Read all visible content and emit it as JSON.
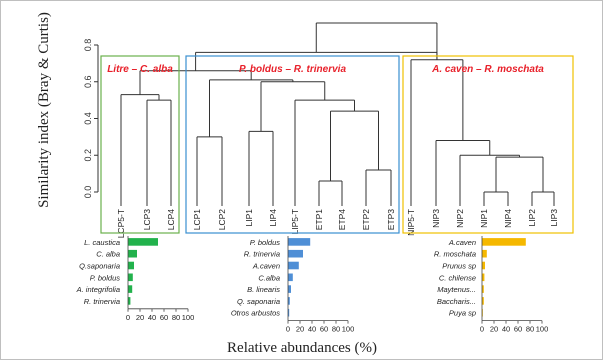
{
  "chart_data": [
    {
      "type": "dendrogram",
      "ylabel": "Similarity  index (Bray & Curtis)",
      "ylim": [
        0,
        0.8
      ],
      "yticks": [
        "0.0",
        "0.2",
        "0.4",
        "0.6",
        "0.8"
      ],
      "leaves": [
        "LCP5-T",
        "LCP3",
        "LCP4",
        "LCP1",
        "LCP2",
        "LIP1",
        "LIP4",
        "LIP5-T",
        "ETP1",
        "ETP4",
        "ETP2",
        "ETP3",
        "NIP5-T",
        "NIP3",
        "NIP2",
        "NIP1",
        "NIP4",
        "LIP2",
        "LIP3"
      ],
      "merges": [
        {
          "a": 1,
          "b": 2,
          "height": 0.5
        },
        {
          "a": 0,
          "b": 19,
          "height": 0.53
        },
        {
          "a": 3,
          "b": 4,
          "height": 0.3
        },
        {
          "a": 5,
          "b": 6,
          "height": 0.33
        },
        {
          "a": 8,
          "b": 9,
          "height": 0.06
        },
        {
          "a": 10,
          "b": 11,
          "height": 0.12
        },
        {
          "a": 23,
          "b": 24,
          "height": 0.44
        },
        {
          "a": 7,
          "b": 25,
          "height": 0.5
        },
        {
          "a": 22,
          "b": 26,
          "height": 0.6
        },
        {
          "a": 21,
          "b": 27,
          "height": 0.61
        },
        {
          "a": 20,
          "b": 28,
          "height": 0.66
        },
        {
          "a": 15,
          "b": 16,
          "height": 0.0
        },
        {
          "a": 17,
          "b": 18,
          "height": 0.0
        },
        {
          "a": 30,
          "b": 31,
          "height": 0.19
        },
        {
          "a": 14,
          "b": 32,
          "height": 0.2
        },
        {
          "a": 13,
          "b": 33,
          "height": 0.28
        },
        {
          "a": 12,
          "b": 34,
          "height": 0.72
        },
        {
          "a": 29,
          "b": 35,
          "height": 0.76
        },
        {
          "a": 36,
          "b": 35,
          "height": 0.92
        }
      ],
      "groups": [
        {
          "label": "Litre – C. alba",
          "color": "#6ab04c",
          "first": 0,
          "last": 2
        },
        {
          "label": "P. boldus – R. trinervia",
          "color": "#3a8fd0",
          "first": 3,
          "last": 11
        },
        {
          "label": "A. caven – R. moschata",
          "color": "#f0c000",
          "first": 12,
          "last": 18
        }
      ]
    },
    {
      "type": "bar",
      "orientation": "horizontal",
      "color": "#22b24c",
      "categories": [
        "L. caustica",
        "C. alba",
        "Q.saponaria",
        "P. boldus",
        "A. integrifolia",
        "R. trinervia"
      ],
      "values": [
        50,
        15,
        10,
        8,
        7,
        4
      ],
      "xlim": [
        0,
        100
      ],
      "xticks": [
        "0",
        "20",
        "40",
        "60",
        "80",
        "100"
      ]
    },
    {
      "type": "bar",
      "orientation": "horizontal",
      "color": "#4f8fd6",
      "categories": [
        "P. boldus",
        "R. trinervia",
        "A.caven",
        "C.alba",
        "B. linearis",
        "Q. saponaria",
        "Otros arbustos"
      ],
      "values": [
        37,
        25,
        18,
        8,
        5,
        3,
        2
      ],
      "xlim": [
        0,
        100
      ],
      "xticks": [
        "0",
        "20",
        "40",
        "60",
        "80",
        "100"
      ]
    },
    {
      "type": "bar",
      "orientation": "horizontal",
      "color": "#f5b800",
      "categories": [
        "A.caven",
        "R. moschata",
        "Prunus sp",
        "C. chilense",
        "Maytenus...",
        "Baccharis...",
        "Puya sp"
      ],
      "values": [
        73,
        8,
        5,
        4,
        3,
        3,
        1
      ],
      "xlim": [
        0,
        100
      ],
      "xticks": [
        "0",
        "20",
        "40",
        "60",
        "80",
        "100"
      ]
    }
  ],
  "xlabel": "Relative abundances (%)"
}
